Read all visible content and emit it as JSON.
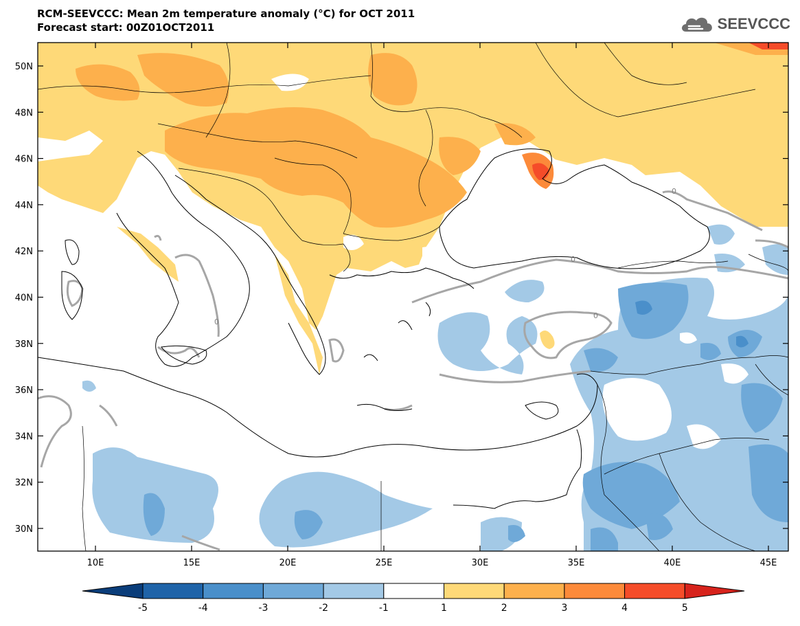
{
  "header": {
    "title": "RCM-SEEVCCC: Mean 2m temperature anomaly (°C) for OCT 2011",
    "subtitle": "Forecast start: 00Z01OCT2011",
    "logo_text": "SEEVCCC"
  },
  "map": {
    "lat_ticks": [
      "50N",
      "48N",
      "46N",
      "44N",
      "42N",
      "40N",
      "38N",
      "36N",
      "34N",
      "32N",
      "30N"
    ],
    "lon_ticks": [
      "10E",
      "15E",
      "20E",
      "25E",
      "30E",
      "35E",
      "40E",
      "45E"
    ],
    "contour_labels": [
      "0",
      "0",
      "0",
      "0"
    ],
    "region": "Balkans, Black Sea and Eastern Mediterranean"
  },
  "colorbar": {
    "labels": [
      "-5",
      "-4",
      "-3",
      "-2",
      "-1",
      "1",
      "2",
      "3",
      "4",
      "5"
    ],
    "colors": [
      "#0a3d7a",
      "#1f63a8",
      "#4a8fca",
      "#6fa9d8",
      "#a3c9e6",
      "#ffffff",
      "#fed978",
      "#fdb04c",
      "#fc8a3a",
      "#f54c29",
      "#d7231c"
    ]
  }
}
